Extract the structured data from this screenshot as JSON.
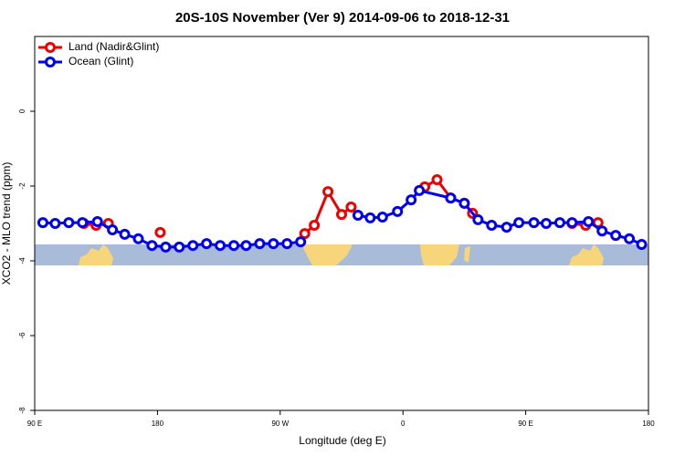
{
  "chart_data": {
    "type": "line",
    "title": "20S-10S November (Ver 9)   2014-09-06 to 2018-12-31",
    "xlabel": "Longitude (deg E)",
    "ylabel": "XCO2 - MLO trend (ppm)",
    "xlim": [
      90,
      540
    ],
    "ylim": [
      -8,
      2
    ],
    "xticks": [
      {
        "value": 90,
        "label": "90 E"
      },
      180,
      {
        "value": 270,
        "label": "90 W"
      },
      {
        "value": 360,
        "label": "0"
      },
      {
        "value": 450,
        "label": "90 E"
      },
      {
        "value": 540,
        "label": "180"
      }
    ],
    "yticks": [
      0,
      -2,
      -4,
      -6,
      -8
    ],
    "legend": "top-left",
    "series": [
      {
        "name": "Land (Nadir&Glint)",
        "color": "#ee0000",
        "x": [
          126,
          135,
          144,
          163,
          182,
          235,
          288,
          295,
          305,
          315,
          322,
          349,
          376,
          385,
          395,
          405,
          411,
          448,
          484,
          494,
          503
        ],
        "values": [
          -3.0,
          -3.05,
          -3.0,
          null,
          -3.24,
          null,
          -3.27,
          -3.05,
          -2.15,
          -2.76,
          -2.56,
          null,
          -2.02,
          -1.83,
          -2.32,
          -2.46,
          -2.73,
          null,
          -3.0,
          -3.05,
          -2.98
        ]
      },
      {
        "name": "Ocean (Glint)",
        "color": "#0000ee",
        "x": [
          96,
          105,
          115,
          125,
          136,
          147,
          156,
          166,
          176,
          186,
          196,
          206,
          216,
          226,
          236,
          245,
          255,
          265,
          275,
          285,
          306,
          327,
          336,
          345,
          356,
          366,
          372,
          395,
          405,
          415,
          425,
          436,
          445,
          456,
          465,
          475,
          484,
          496,
          506,
          516,
          526,
          535
        ],
        "values": [
          -2.98,
          -3.0,
          -2.98,
          -2.98,
          -2.95,
          -3.17,
          -3.29,
          -3.41,
          -3.59,
          -3.63,
          -3.63,
          -3.59,
          -3.54,
          -3.59,
          -3.59,
          -3.59,
          -3.54,
          -3.54,
          -3.54,
          -3.49,
          null,
          -2.78,
          -2.85,
          -2.83,
          -2.68,
          -2.37,
          -2.12,
          -2.32,
          -2.46,
          -2.9,
          -3.05,
          -3.1,
          -2.98,
          -2.98,
          -3.0,
          -2.98,
          -2.98,
          -2.95,
          -3.2,
          -3.32,
          -3.41,
          -3.56
        ]
      }
    ]
  }
}
